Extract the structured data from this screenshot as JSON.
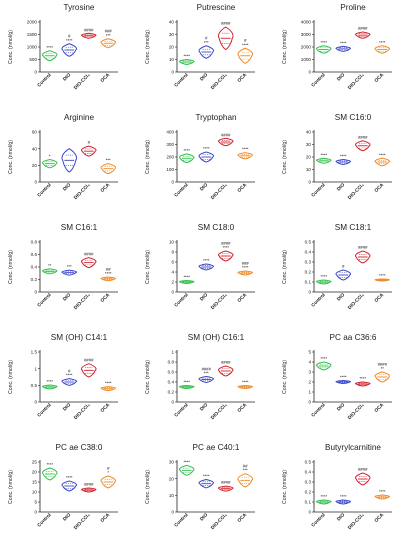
{
  "colors": {
    "Control": "#2fbf4a",
    "DIO": "#3a47c8",
    "DIO-CCl₄": "#d1202a",
    "OCA": "#f08a24"
  },
  "chart_data": [
    {
      "type": "violin",
      "title": "Tyrosine",
      "ylabel": "Conc. (nmol/g)",
      "ylim": [
        0,
        2000
      ],
      "yticks": [
        0,
        500,
        1000,
        1500,
        2000
      ],
      "categories": [
        "Control",
        "DIO",
        "DIO-CCl₄",
        "OCA"
      ],
      "values": [
        650,
        880,
        1450,
        1150
      ],
      "spread": [
        200,
        250,
        100,
        180
      ],
      "annotations": [
        [
          "****"
        ],
        [
          "#",
          "****"
        ],
        [
          "####"
        ],
        [
          "###",
          "***"
        ]
      ]
    },
    {
      "type": "violin",
      "title": "Putrescine",
      "ylabel": "Conc. (nmol/g)",
      "ylim": [
        0,
        40
      ],
      "yticks": [
        0,
        10,
        20,
        30,
        40
      ],
      "categories": [
        "Control",
        "DIO",
        "DIO-CCl₄",
        "OCA"
      ],
      "values": [
        8,
        16,
        27,
        13
      ],
      "spread": [
        2,
        5,
        9,
        6
      ],
      "annotations": [
        [
          "****"
        ],
        [
          "#",
          "***"
        ],
        [
          "####"
        ],
        [
          "#",
          "****"
        ]
      ]
    },
    {
      "type": "violin",
      "title": "Proline",
      "ylabel": "Conc. (nmol/g)",
      "ylim": [
        0,
        4000
      ],
      "yticks": [
        0,
        1000,
        2000,
        3000,
        4000
      ],
      "categories": [
        "Control",
        "DIO",
        "DIO-CCl₄",
        "OCA"
      ],
      "values": [
        1800,
        1850,
        2950,
        1800
      ],
      "spread": [
        300,
        200,
        250,
        300
      ],
      "annotations": [
        [
          "****"
        ],
        [
          "****"
        ],
        [
          "####"
        ],
        [
          "****"
        ]
      ]
    },
    {
      "type": "violin",
      "title": "Arginine",
      "ylabel": "Conc. (nmol/g)",
      "ylim": [
        0,
        60
      ],
      "yticks": [
        0,
        20,
        40,
        60
      ],
      "categories": [
        "Control",
        "DIO",
        "DIO-CCl₄",
        "OCA"
      ],
      "values": [
        22,
        26,
        37,
        16
      ],
      "spread": [
        5,
        14,
        6,
        6
      ],
      "annotations": [
        [
          "*"
        ],
        [],
        [
          "#"
        ],
        [
          "***"
        ]
      ]
    },
    {
      "type": "violin",
      "title": "Tryptophan",
      "ylabel": "Conc. (nmol/g)",
      "ylim": [
        0,
        400
      ],
      "yticks": [
        0,
        100,
        200,
        300,
        400
      ],
      "categories": [
        "Control",
        "DIO",
        "DIO-CCl₄",
        "OCA"
      ],
      "values": [
        190,
        200,
        320,
        210
      ],
      "spread": [
        35,
        40,
        30,
        25
      ],
      "annotations": [
        [
          "****"
        ],
        [
          "****"
        ],
        [
          "####"
        ],
        [
          "****"
        ]
      ]
    },
    {
      "type": "violin",
      "title": "SM C16:0",
      "ylabel": "Conc. (nmol/g)",
      "ylim": [
        0,
        40
      ],
      "yticks": [
        0,
        10,
        20,
        30,
        40
      ],
      "categories": [
        "Control",
        "DIO",
        "DIO-CCl₄",
        "OCA"
      ],
      "values": [
        17,
        16,
        29,
        16
      ],
      "spread": [
        2,
        2,
        4,
        3
      ],
      "annotations": [
        [
          "****"
        ],
        [
          "****"
        ],
        [
          "####"
        ],
        [
          "****"
        ]
      ]
    },
    {
      "type": "violin",
      "title": "SM C16:1",
      "ylabel": "Conc. (nmol/g)",
      "ylim": [
        0,
        0.8
      ],
      "yticks": [
        0,
        0.2,
        0.4,
        0.6,
        0.8
      ],
      "categories": [
        "Control",
        "DIO",
        "DIO-CCl₄",
        "OCA"
      ],
      "values": [
        0.33,
        0.31,
        0.47,
        0.21
      ],
      "spread": [
        0.04,
        0.04,
        0.08,
        0.03
      ],
      "annotations": [
        [
          "**"
        ],
        [
          "***"
        ],
        [
          "####"
        ],
        [
          "##",
          "****"
        ]
      ]
    },
    {
      "type": "violin",
      "title": "SM C18:0",
      "ylabel": "Conc. (nmol/g)",
      "ylim": [
        0,
        10
      ],
      "yticks": [
        0,
        2,
        4,
        6,
        8,
        10
      ],
      "categories": [
        "Control",
        "DIO",
        "DIO-CCl₄",
        "OCA"
      ],
      "values": [
        2,
        5,
        7.2,
        3.8
      ],
      "spread": [
        0.3,
        0.6,
        1,
        0.4
      ],
      "annotations": [
        [
          "****"
        ],
        [
          "****"
        ],
        [
          "####",
          "****"
        ],
        [
          "###",
          "****"
        ]
      ]
    },
    {
      "type": "violin",
      "title": "SM C18:1",
      "ylabel": "Conc. (nmol/g)",
      "ylim": [
        0,
        0.5
      ],
      "yticks": [
        0,
        0.1,
        0.2,
        0.3,
        0.4,
        0.5
      ],
      "categories": [
        "Control",
        "DIO",
        "DIO-CCl₄",
        "OCA"
      ],
      "values": [
        0.1,
        0.17,
        0.35,
        0.12
      ],
      "spread": [
        0.02,
        0.05,
        0.06,
        0.01
      ],
      "annotations": [
        [
          "****"
        ],
        [
          "#"
        ],
        [
          "####"
        ],
        [
          "****"
        ]
      ]
    },
    {
      "type": "violin",
      "title": "SM (OH) C14:1",
      "ylabel": "Conc. (nmol/g)",
      "ylim": [
        0,
        1.5
      ],
      "yticks": [
        0,
        0.5,
        1.0,
        1.5
      ],
      "categories": [
        "Control",
        "DIO",
        "DIO-CCl₄",
        "OCA"
      ],
      "values": [
        0.45,
        0.6,
        0.95,
        0.4
      ],
      "spread": [
        0.06,
        0.1,
        0.2,
        0.06
      ],
      "annotations": [
        [
          "****"
        ],
        [
          "#",
          "****"
        ],
        [
          "####"
        ],
        [
          "****"
        ]
      ]
    },
    {
      "type": "violin",
      "title": "SM (OH) C16:1",
      "ylabel": "Conc. (nmol/g)",
      "ylim": [
        0,
        1.0
      ],
      "yticks": [
        0,
        0.2,
        0.4,
        0.6,
        0.8,
        1.0
      ],
      "categories": [
        "Control",
        "DIO",
        "DIO-CCl₄",
        "OCA"
      ],
      "values": [
        0.3,
        0.45,
        0.62,
        0.3
      ],
      "spread": [
        0.03,
        0.06,
        0.1,
        0.03
      ],
      "annotations": [
        [
          "****"
        ],
        [
          "####",
          "***"
        ],
        [
          "####"
        ],
        [
          "****"
        ]
      ]
    },
    {
      "type": "violin",
      "title": "PC aa C36:6",
      "ylabel": "Conc. (nmol/g)",
      "ylim": [
        0,
        5
      ],
      "yticks": [
        0,
        1,
        2,
        3,
        4,
        5
      ],
      "categories": [
        "Control",
        "DIO",
        "DIO-CCl₄",
        "OCA"
      ],
      "values": [
        3.6,
        2,
        1.8,
        2.5
      ],
      "spread": [
        0.4,
        0.15,
        0.2,
        0.5
      ],
      "annotations": [
        [
          "****"
        ],
        [
          "****"
        ],
        [
          "****"
        ],
        [
          "####",
          "**"
        ]
      ]
    },
    {
      "type": "violin",
      "title": "PC ae C38:0",
      "ylabel": "Conc. (nmol/g)",
      "ylim": [
        0,
        25
      ],
      "yticks": [
        0,
        5,
        10,
        15,
        20,
        25
      ],
      "categories": [
        "Control",
        "DIO",
        "DIO-CCl₄",
        "OCA"
      ],
      "values": [
        19,
        13,
        11,
        15
      ],
      "spread": [
        3,
        2.5,
        1,
        3
      ],
      "annotations": [
        [
          "****"
        ],
        [
          "****"
        ],
        [
          "####"
        ],
        [
          "#",
          "*"
        ]
      ]
    },
    {
      "type": "violin",
      "title": "PC ae C40:1",
      "ylabel": "Conc. (nmol/g)",
      "ylim": [
        0,
        30
      ],
      "yticks": [
        0,
        10,
        20,
        30
      ],
      "categories": [
        "Control",
        "DIO",
        "DIO-CCl₄",
        "OCA"
      ],
      "values": [
        25,
        17,
        14,
        19
      ],
      "spread": [
        3,
        2.5,
        1.5,
        4
      ],
      "annotations": [
        [
          "****"
        ],
        [
          "****"
        ],
        [
          "####"
        ],
        [
          "##",
          "***"
        ]
      ]
    },
    {
      "type": "violin",
      "title": "Butyrylcarnitine",
      "ylabel": "Conc. (nmol/g)",
      "ylim": [
        0,
        0.5
      ],
      "yticks": [
        0,
        0.1,
        0.2,
        0.3,
        0.4,
        0.5
      ],
      "categories": [
        "Control",
        "DIO",
        "DIO-CCl₄",
        "OCA"
      ],
      "values": [
        0.1,
        0.1,
        0.33,
        0.15
      ],
      "spread": [
        0.02,
        0.02,
        0.06,
        0.02
      ],
      "annotations": [
        [
          "****"
        ],
        [
          "****"
        ],
        [
          "####"
        ],
        [
          "****"
        ]
      ]
    }
  ]
}
